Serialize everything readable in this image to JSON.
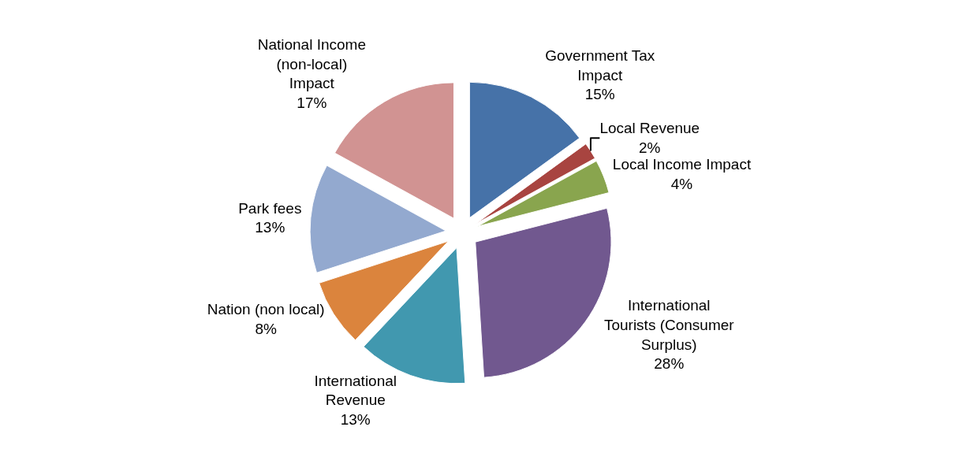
{
  "chart_data": {
    "type": "pie",
    "categories": [
      "Government Tax\nImpact",
      "Local Revenue",
      "Local Income Impact",
      "International\nTourists (Consumer\nSurplus)",
      "International\nRevenue",
      "Nation (non local)",
      "Park fees",
      "National Income\n(non-local)\nImpact"
    ],
    "values": [
      15,
      2,
      4,
      28,
      13,
      8,
      13,
      17
    ],
    "value_labels": [
      "15%",
      "2%",
      "4%",
      "28%",
      "13%",
      "8%",
      "13%",
      "17%"
    ],
    "colors": [
      "#4672a8",
      "#a84440",
      "#89a54e",
      "#71588f",
      "#4198af",
      "#db843d",
      "#93a9cf",
      "#d19392"
    ],
    "legend": false
  }
}
